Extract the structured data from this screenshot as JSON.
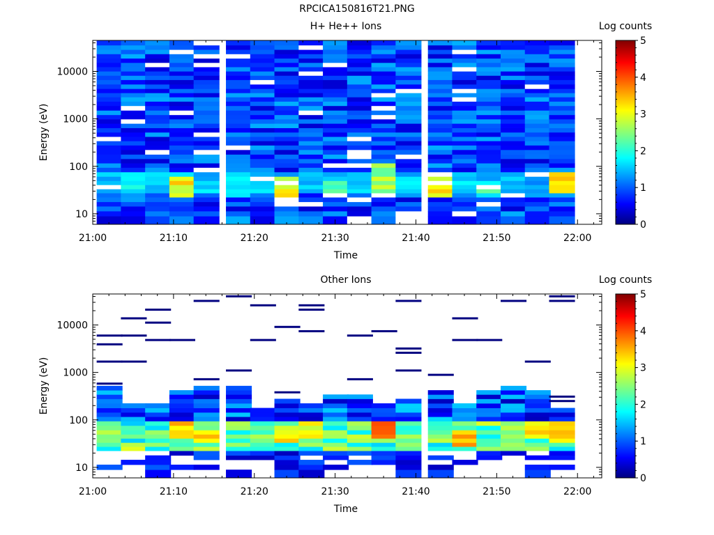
{
  "page_title": "RPCICA150816T21.PNG",
  "colorbar": {
    "label": "Log counts",
    "ticks": [
      "0",
      "1",
      "2",
      "3",
      "4",
      "5"
    ]
  },
  "chart_data": [
    {
      "type": "heatmap",
      "title": "H+ He++ Ions",
      "xlabel": "Time",
      "ylabel": "Energy (eV)",
      "x_ticks": [
        "21:00",
        "21:10",
        "21:20",
        "21:30",
        "21:40",
        "21:50",
        "22:00"
      ],
      "y_ticks": [
        "10",
        "100",
        "1000",
        "10000"
      ],
      "y_scale": "log",
      "xlim": [
        "21:00",
        "22:03"
      ],
      "ylim": [
        6,
        45000
      ],
      "zlim": [
        0,
        5
      ],
      "zlabel": "Log counts",
      "time_bins": [
        "21:02",
        "21:05",
        "21:08",
        "21:11",
        "21:14",
        "21:18",
        "21:21",
        "21:24",
        "21:27",
        "21:30",
        "21:33",
        "21:36",
        "21:39",
        "21:43",
        "21:46",
        "21:49",
        "21:52",
        "21:55",
        "21:58"
      ],
      "energy_bins_eV": [
        8,
        10,
        13,
        16,
        20,
        25,
        30,
        37,
        45,
        55,
        68,
        85,
        105,
        130,
        160,
        200,
        250,
        310,
        380,
        470,
        580,
        720,
        890,
        1100,
        1350,
        1700,
        2100,
        2600,
        3200,
        3900,
        4800,
        6000,
        7400,
        9100,
        11200,
        13800,
        17000,
        21000,
        26000,
        32000,
        40000
      ],
      "low_energy_peaks": [
        {
          "time": "21:05",
          "energy_eV": [
            30,
            60
          ],
          "log_counts": 2.2
        },
        {
          "time": "21:11",
          "energy_eV": [
            25,
            60
          ],
          "log_counts": 3.5
        },
        {
          "time": "21:18",
          "energy_eV": [
            25,
            35
          ],
          "log_counts": 2.0
        },
        {
          "time": "21:24",
          "energy_eV": [
            25,
            60
          ],
          "log_counts": 3.4
        },
        {
          "time": "21:30",
          "energy_eV": [
            25,
            50
          ],
          "log_counts": 2.8
        },
        {
          "time": "21:36",
          "energy_eV": [
            25,
            120
          ],
          "log_counts": 3.0
        },
        {
          "time": "21:43",
          "energy_eV": [
            25,
            60
          ],
          "log_counts": 3.5
        },
        {
          "time": "21:49",
          "energy_eV": [
            25,
            50
          ],
          "log_counts": 2.4
        },
        {
          "time": "21:55",
          "energy_eV": [
            30,
            70
          ],
          "log_counts": 1.6
        },
        {
          "time": "21:58",
          "energy_eV": [
            30,
            70
          ],
          "log_counts": 3.6
        }
      ]
    },
    {
      "type": "heatmap",
      "title": "Other Ions",
      "xlabel": "Time",
      "ylabel": "Energy (eV)",
      "x_ticks": [
        "21:00",
        "21:10",
        "21:20",
        "21:30",
        "21:40",
        "21:50",
        "22:00"
      ],
      "y_ticks": [
        "10",
        "100",
        "1000",
        "10000"
      ],
      "y_scale": "log",
      "xlim": [
        "21:00",
        "22:03"
      ],
      "ylim": [
        6,
        45000
      ],
      "zlim": [
        0,
        5
      ],
      "zlabel": "Log counts",
      "peaks": [
        {
          "time": "21:02",
          "energy_eV": [
            40,
            80
          ],
          "log_counts": 3.0
        },
        {
          "time": "21:11",
          "energy_eV": [
            40,
            90
          ],
          "log_counts": 3.6
        },
        {
          "time": "21:14",
          "energy_eV": [
            35,
            60
          ],
          "log_counts": 3.5
        },
        {
          "time": "21:24",
          "energy_eV": [
            35,
            70
          ],
          "log_counts": 3.5
        },
        {
          "time": "21:27",
          "energy_eV": [
            40,
            90
          ],
          "log_counts": 3.3
        },
        {
          "time": "21:36",
          "energy_eV": [
            40,
            100
          ],
          "log_counts": 4.0
        },
        {
          "time": "21:46",
          "energy_eV": [
            30,
            60
          ],
          "log_counts": 3.8
        },
        {
          "time": "21:55",
          "energy_eV": [
            40,
            100
          ],
          "log_counts": 3.6
        },
        {
          "time": "21:58",
          "energy_eV": [
            35,
            100
          ],
          "log_counts": 3.7
        }
      ]
    }
  ]
}
